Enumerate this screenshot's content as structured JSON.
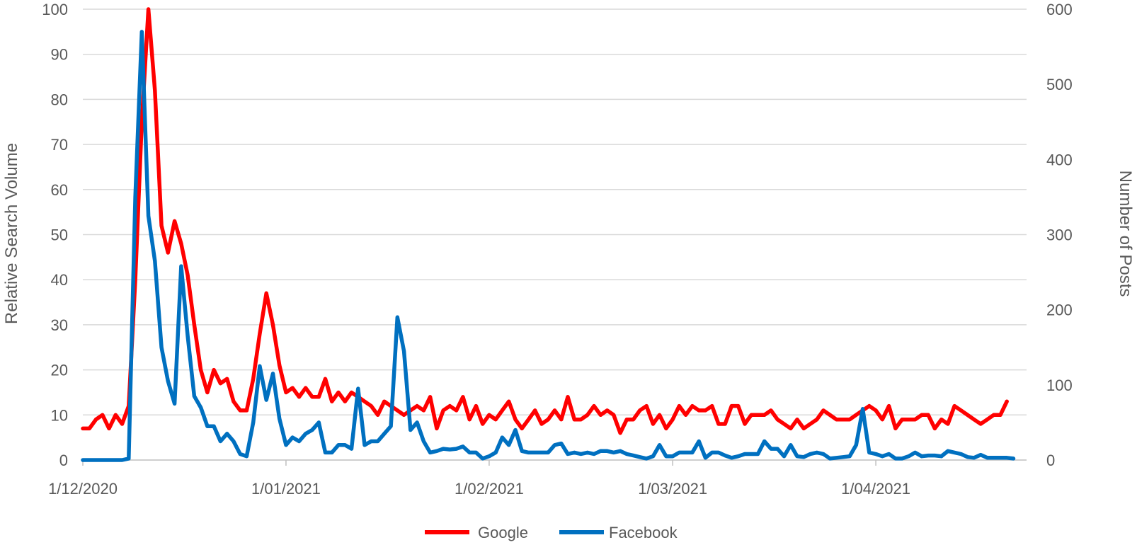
{
  "chart_data": {
    "type": "line",
    "ylabel": "Relative Search Volume",
    "y2label": "Number of Posts",
    "ylim": [
      0,
      100
    ],
    "y2lim": [
      0,
      600
    ],
    "yticks": [
      "0",
      "10",
      "20",
      "30",
      "40",
      "50",
      "60",
      "70",
      "80",
      "90",
      "100"
    ],
    "y2ticks": [
      "0",
      "100",
      "200",
      "300",
      "400",
      "500",
      "600"
    ],
    "x_start_date": "2020-12-01",
    "x_range": [
      "2020-12-01",
      "2021-04-24"
    ],
    "xticks": [
      {
        "label": "1/12/2020",
        "date": "2020-12-01"
      },
      {
        "label": "1/01/2021",
        "date": "2021-01-01"
      },
      {
        "label": "1/02/2021",
        "date": "2021-02-01"
      },
      {
        "label": "1/03/2021",
        "date": "2021-03-01"
      },
      {
        "label": "1/04/2021",
        "date": "2021-04-01"
      }
    ],
    "grid": true,
    "legend_position": "bottom",
    "series": [
      {
        "name": "Google",
        "color": "#ff0000",
        "axis": "left",
        "values": [
          7,
          7,
          9,
          10,
          7,
          10,
          8,
          12,
          40,
          75,
          100,
          82,
          52,
          46,
          53,
          48,
          41,
          30,
          20,
          15,
          20,
          17,
          18,
          13,
          11,
          11,
          18,
          28,
          37,
          30,
          21,
          15,
          16,
          14,
          16,
          14,
          14,
          18,
          13,
          15,
          13,
          15,
          14,
          13,
          12,
          10,
          13,
          12,
          11,
          10,
          11,
          12,
          11,
          14,
          7,
          11,
          12,
          11,
          14,
          9,
          12,
          8,
          10,
          9,
          11,
          13,
          9,
          7,
          9,
          11,
          8,
          9,
          11,
          9,
          14,
          9,
          9,
          10,
          12,
          10,
          11,
          10,
          6,
          9,
          9,
          11,
          12,
          8,
          10,
          7,
          9,
          12,
          10,
          12,
          11,
          11,
          12,
          8,
          8,
          12,
          12,
          8,
          10,
          10,
          10,
          11,
          9,
          8,
          7,
          9,
          7,
          8,
          9,
          11,
          10,
          9,
          9,
          9,
          10,
          11,
          12,
          11,
          9,
          12,
          7,
          9,
          9,
          9,
          10,
          10,
          7,
          9,
          8,
          12,
          11,
          10,
          9,
          8,
          9,
          10,
          10,
          13
        ]
      },
      {
        "name": "Facebook",
        "color": "#0070c0",
        "axis": "right",
        "values": [
          0,
          0,
          0,
          0,
          0,
          0,
          0,
          2,
          350,
          570,
          325,
          265,
          150,
          105,
          75,
          258,
          165,
          85,
          70,
          45,
          45,
          25,
          35,
          25,
          8,
          5,
          50,
          125,
          80,
          115,
          55,
          20,
          30,
          25,
          35,
          40,
          50,
          10,
          10,
          20,
          20,
          15,
          95,
          20,
          25,
          25,
          35,
          45,
          190,
          145,
          40,
          50,
          25,
          10,
          12,
          15,
          14,
          15,
          18,
          10,
          10,
          2,
          5,
          10,
          30,
          20,
          40,
          12,
          10,
          10,
          10,
          10,
          20,
          22,
          8,
          10,
          8,
          10,
          8,
          12,
          12,
          10,
          12,
          8,
          6,
          4,
          2,
          5,
          20,
          5,
          5,
          10,
          10,
          10,
          25,
          3,
          10,
          10,
          6,
          3,
          5,
          8,
          8,
          8,
          25,
          15,
          15,
          5,
          20,
          5,
          4,
          8,
          10,
          8,
          2,
          3,
          4,
          5,
          20,
          68,
          10,
          8,
          5,
          8,
          2,
          2,
          5,
          10,
          5,
          6,
          6,
          5,
          12,
          10,
          8,
          4,
          3,
          7,
          3,
          3,
          3,
          3,
          2
        ]
      }
    ]
  }
}
